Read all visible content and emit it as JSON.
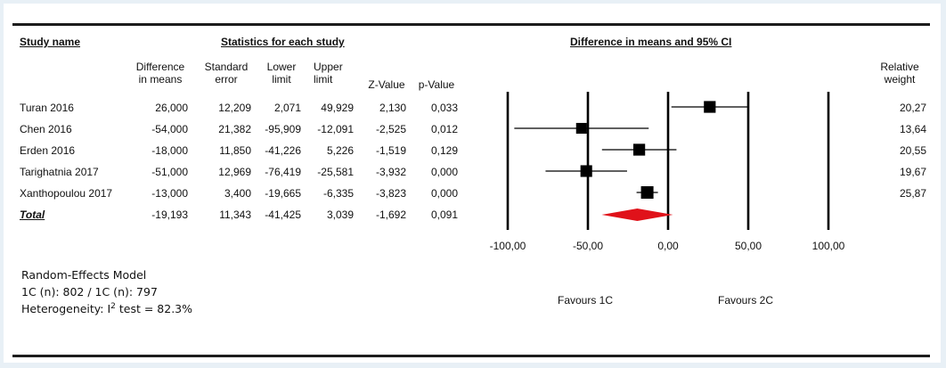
{
  "headers": {
    "study_name": "Study name",
    "statistics": "Statistics for each study",
    "forest": "Difference in means and 95% CI"
  },
  "columns": {
    "diff": "Difference\nin means",
    "se": "Standard\nerror",
    "lower": "Lower\nlimit",
    "upper": "Upper\nlimit",
    "z": "Z-Value",
    "p": "p-Value",
    "weight": "Relative\nweight"
  },
  "rows": [
    {
      "study": "Turan 2016",
      "diff": "26,000",
      "se": "12,209",
      "lower": "2,071",
      "upper": "49,929",
      "z": "2,130",
      "p": "0,033",
      "weight": "20,27"
    },
    {
      "study": "Chen 2016",
      "diff": "-54,000",
      "se": "21,382",
      "lower": "-95,909",
      "upper": "-12,091",
      "z": "-2,525",
      "p": "0,012",
      "weight": "13,64"
    },
    {
      "study": "Erden 2016",
      "diff": "-18,000",
      "se": "11,850",
      "lower": "-41,226",
      "upper": "5,226",
      "z": "-1,519",
      "p": "0,129",
      "weight": "20,55"
    },
    {
      "study": "Tarighatnia 2017",
      "diff": "-51,000",
      "se": "12,969",
      "lower": "-76,419",
      "upper": "-25,581",
      "z": "-3,932",
      "p": "0,000",
      "weight": "19,67"
    },
    {
      "study": "Xanthopoulou 2017",
      "diff": "-13,000",
      "se": "3,400",
      "lower": "-19,665",
      "upper": "-6,335",
      "z": "-3,823",
      "p": "0,000",
      "weight": "25,87"
    }
  ],
  "total": {
    "study": "Total",
    "diff": "-19,193",
    "se": "11,343",
    "lower": "-41,425",
    "upper": "3,039",
    "z": "-1,692",
    "p": "0,091"
  },
  "axis_tick_labels": [
    "-100,00",
    "-50,00",
    "0,00",
    "50,00",
    "100,00"
  ],
  "favours": {
    "left": "Favours 1C",
    "right": "Favours 2C"
  },
  "footnotes": {
    "model": "Random-Effects Model",
    "sample": "1C (n): 802 / 1C (n): 797",
    "heterogeneity_prefix": "Heterogeneity: I",
    "heterogeneity_sup": "2",
    "heterogeneity_suffix": " test = 82.3%"
  },
  "colors": {
    "square": "#000000",
    "diamond": "#e0121a",
    "line": "#000000"
  },
  "chart_data": {
    "type": "forest",
    "xlim": [
      -100,
      100
    ],
    "ticks": [
      -100,
      -50,
      0,
      50,
      100
    ],
    "studies": [
      {
        "name": "Turan 2016",
        "estimate": 26.0,
        "lower": 2.071,
        "upper": 49.929,
        "weight": 20.27
      },
      {
        "name": "Chen 2016",
        "estimate": -54.0,
        "lower": -95.909,
        "upper": -12.091,
        "weight": 13.64
      },
      {
        "name": "Erden 2016",
        "estimate": -18.0,
        "lower": -41.226,
        "upper": 5.226,
        "weight": 20.55
      },
      {
        "name": "Tarighatnia 2017",
        "estimate": -51.0,
        "lower": -76.419,
        "upper": -25.581,
        "weight": 19.67
      },
      {
        "name": "Xanthopoulou 2017",
        "estimate": -13.0,
        "lower": -19.665,
        "upper": -6.335,
        "weight": 25.87
      }
    ],
    "summary": {
      "name": "Total",
      "estimate": -19.193,
      "lower": -41.425,
      "upper": 3.039
    }
  }
}
